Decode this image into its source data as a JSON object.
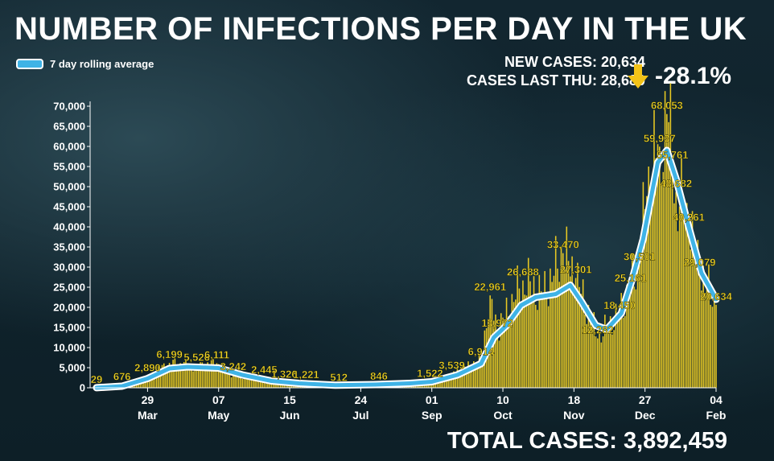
{
  "header": {
    "title": "NUMBER OF INFECTIONS PER DAY IN THE UK",
    "legend_label": "7 day rolling average",
    "new_cases": "NEW CASES: 20,634",
    "cases_last_thu": "CASES LAST THU: 28,680",
    "change": "-28.1%",
    "total": "TOTAL CASES: 3,892,459"
  },
  "colors": {
    "bars": "#e8c923",
    "line": "#3fb3e6",
    "line_border": "#ffffff",
    "labels": "#f3d728",
    "arrow": "#f3c318"
  },
  "icons": {
    "arrow": "down-arrow-icon"
  },
  "chart_data": {
    "type": "bar",
    "ylim": [
      0,
      70000
    ],
    "yticks": [
      0,
      5000,
      10000,
      15000,
      20000,
      25000,
      30000,
      35000,
      40000,
      45000,
      50000,
      55000,
      60000,
      65000,
      70000
    ],
    "ytick_labels": [
      "0",
      "5,000",
      "10,000",
      "15,000",
      "20,000",
      "25,000",
      "30,000",
      "35,000",
      "40,000",
      "45,000",
      "50,000",
      "55,000",
      "60,000",
      "65,000",
      "70,000"
    ],
    "xlim": [
      "2020-03-01",
      "2021-02-04"
    ],
    "xticks": [
      {
        "date": "2020-03-29",
        "day": "29",
        "month": "Mar"
      },
      {
        "date": "2020-05-07",
        "day": "07",
        "month": "May"
      },
      {
        "date": "2020-06-15",
        "day": "15",
        "month": "Jun"
      },
      {
        "date": "2020-07-24",
        "day": "24",
        "month": "Jul"
      },
      {
        "date": "2020-09-01",
        "day": "01",
        "month": "Sep"
      },
      {
        "date": "2020-10-10",
        "day": "10",
        "month": "Oct"
      },
      {
        "date": "2020-11-18",
        "day": "18",
        "month": "Nov"
      },
      {
        "date": "2020-12-27",
        "day": "27",
        "month": "Dec"
      },
      {
        "date": "2021-02-04",
        "day": "04",
        "month": "Feb"
      }
    ],
    "daily_anchors": [
      [
        "2020-03-01",
        29
      ],
      [
        "2020-03-15",
        676
      ],
      [
        "2020-03-29",
        2890
      ],
      [
        "2020-04-10",
        6199
      ],
      [
        "2020-04-25",
        5526
      ],
      [
        "2020-05-06",
        6111
      ],
      [
        "2020-05-15",
        3242
      ],
      [
        "2020-06-01",
        2445
      ],
      [
        "2020-06-12",
        1326
      ],
      [
        "2020-06-24",
        1221
      ],
      [
        "2020-07-12",
        512
      ],
      [
        "2020-08-03",
        846
      ],
      [
        "2020-08-31",
        1522
      ],
      [
        "2020-09-12",
        3539
      ],
      [
        "2020-09-28",
        6914
      ],
      [
        "2020-10-03",
        22961
      ],
      [
        "2020-10-07",
        13972
      ],
      [
        "2020-10-21",
        26688
      ],
      [
        "2020-11-01",
        23000
      ],
      [
        "2020-11-12",
        33470
      ],
      [
        "2020-11-19",
        27301
      ],
      [
        "2020-12-01",
        12282
      ],
      [
        "2020-12-13",
        18450
      ],
      [
        "2020-12-19",
        25161
      ],
      [
        "2020-12-24",
        30501
      ],
      [
        "2020-12-29",
        55000
      ],
      [
        "2021-01-04",
        59937
      ],
      [
        "2021-01-08",
        68053
      ],
      [
        "2021-01-11",
        55761
      ],
      [
        "2021-01-13",
        48682
      ],
      [
        "2021-01-20",
        40261
      ],
      [
        "2021-01-26",
        29079
      ],
      [
        "2021-02-04",
        20634
      ]
    ],
    "rolling_average": [
      [
        "2020-03-01",
        20
      ],
      [
        "2020-03-15",
        400
      ],
      [
        "2020-03-29",
        2300
      ],
      [
        "2020-04-10",
        4800
      ],
      [
        "2020-04-20",
        5200
      ],
      [
        "2020-05-07",
        4900
      ],
      [
        "2020-05-20",
        3200
      ],
      [
        "2020-06-05",
        1700
      ],
      [
        "2020-06-20",
        1100
      ],
      [
        "2020-07-10",
        650
      ],
      [
        "2020-08-01",
        800
      ],
      [
        "2020-08-20",
        1100
      ],
      [
        "2020-09-01",
        1500
      ],
      [
        "2020-09-15",
        3200
      ],
      [
        "2020-09-28",
        6000
      ],
      [
        "2020-10-05",
        12500
      ],
      [
        "2020-10-12",
        15500
      ],
      [
        "2020-10-20",
        20500
      ],
      [
        "2020-10-28",
        22500
      ],
      [
        "2020-11-08",
        23300
      ],
      [
        "2020-11-16",
        25500
      ],
      [
        "2020-11-22",
        21500
      ],
      [
        "2020-11-30",
        15500
      ],
      [
        "2020-12-06",
        14500
      ],
      [
        "2020-12-14",
        18500
      ],
      [
        "2020-12-20",
        27000
      ],
      [
        "2020-12-26",
        37000
      ],
      [
        "2021-01-03",
        56000
      ],
      [
        "2021-01-08",
        59000
      ],
      [
        "2021-01-13",
        52000
      ],
      [
        "2021-01-20",
        40000
      ],
      [
        "2021-01-27",
        28500
      ],
      [
        "2021-02-04",
        22000
      ]
    ],
    "data_labels": [
      {
        "date": "2020-03-01",
        "value": 29,
        "text": "29"
      },
      {
        "date": "2020-03-15",
        "value": 676,
        "text": "676"
      },
      {
        "date": "2020-03-29",
        "value": 2890,
        "text": "2,890"
      },
      {
        "date": "2020-04-10",
        "value": 6199,
        "text": "6,199"
      },
      {
        "date": "2020-04-25",
        "value": 5526,
        "text": "5,526"
      },
      {
        "date": "2020-05-06",
        "value": 6111,
        "text": "6,111"
      },
      {
        "date": "2020-05-15",
        "value": 3242,
        "text": "3,242"
      },
      {
        "date": "2020-06-01",
        "value": 2445,
        "text": "2,445"
      },
      {
        "date": "2020-06-12",
        "value": 1326,
        "text": "1,326"
      },
      {
        "date": "2020-06-24",
        "value": 1221,
        "text": "1,221"
      },
      {
        "date": "2020-07-12",
        "value": 512,
        "text": "512"
      },
      {
        "date": "2020-08-03",
        "value": 846,
        "text": "846"
      },
      {
        "date": "2020-08-31",
        "value": 1522,
        "text": "1,522"
      },
      {
        "date": "2020-09-12",
        "value": 3539,
        "text": "3,539"
      },
      {
        "date": "2020-09-28",
        "value": 6914,
        "text": "6,914"
      },
      {
        "date": "2020-10-03",
        "value": 22961,
        "text": "22,961"
      },
      {
        "date": "2020-10-07",
        "value": 13972,
        "text": "13,972"
      },
      {
        "date": "2020-10-21",
        "value": 26688,
        "text": "26,688"
      },
      {
        "date": "2020-11-12",
        "value": 33470,
        "text": "33,470"
      },
      {
        "date": "2020-11-19",
        "value": 27301,
        "text": "27,301"
      },
      {
        "date": "2020-12-01",
        "value": 12282,
        "text": "12,282"
      },
      {
        "date": "2020-12-13",
        "value": 18450,
        "text": "18,450"
      },
      {
        "date": "2020-12-19",
        "value": 25161,
        "text": "25,161"
      },
      {
        "date": "2020-12-24",
        "value": 30501,
        "text": "30,501"
      },
      {
        "date": "2021-01-04",
        "value": 59937,
        "text": "59,937"
      },
      {
        "date": "2021-01-08",
        "value": 68053,
        "text": "68,053"
      },
      {
        "date": "2021-01-11",
        "value": 55761,
        "text": "55,761"
      },
      {
        "date": "2021-01-13",
        "value": 48682,
        "text": "48,682"
      },
      {
        "date": "2021-01-20",
        "value": 40261,
        "text": "40,261"
      },
      {
        "date": "2021-01-26",
        "value": 29079,
        "text": "29,079"
      },
      {
        "date": "2021-02-04",
        "value": 20634,
        "text": "20,634"
      }
    ],
    "grid": false,
    "legend": "top-left"
  }
}
